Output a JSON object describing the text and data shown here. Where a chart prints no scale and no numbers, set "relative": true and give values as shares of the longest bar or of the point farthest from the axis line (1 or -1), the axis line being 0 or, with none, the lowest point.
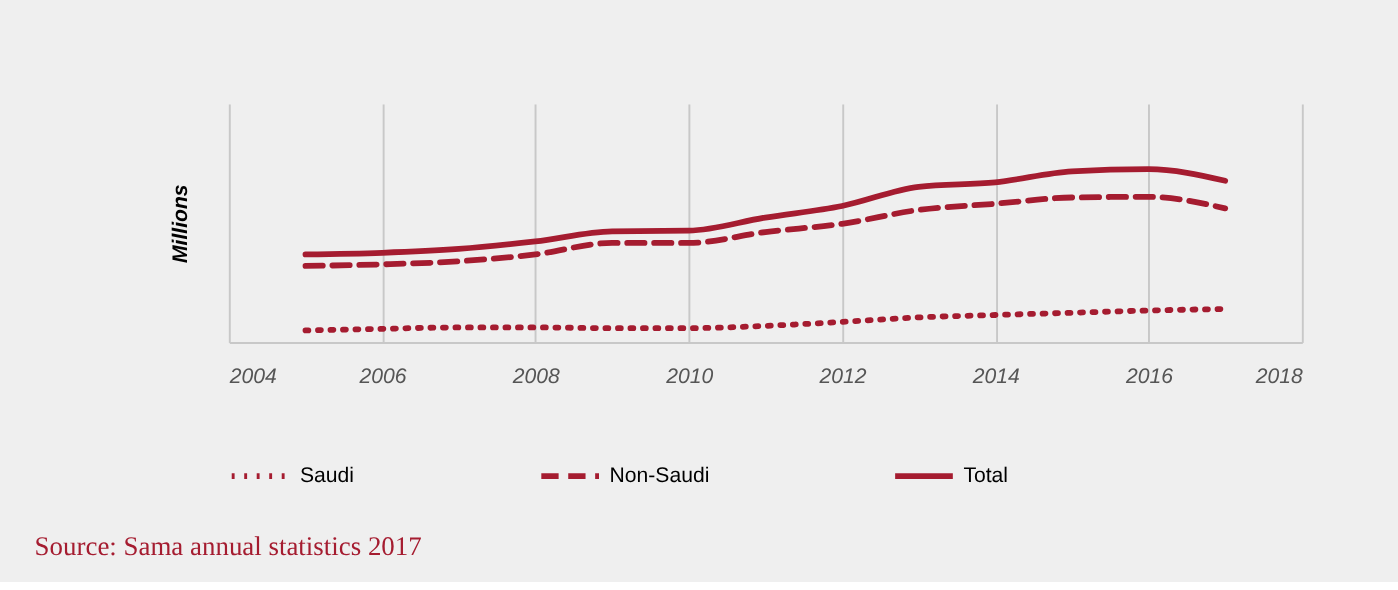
{
  "chart_data": {
    "type": "line",
    "relative": true,
    "ylabel": "Millions",
    "x": [
      2005,
      2006,
      2007,
      2008,
      2009,
      2010,
      2011,
      2012,
      2013,
      2014,
      2015,
      2016,
      2017
    ],
    "xlim": [
      2004,
      2018
    ],
    "xticks": [
      2004,
      2006,
      2008,
      2010,
      2012,
      2014,
      2016,
      2018
    ],
    "grid": "x",
    "legend": "bottom",
    "series": [
      {
        "name": "Saudi",
        "color": "#a51c30",
        "line_style": "dotted",
        "values": [
          0.067,
          0.076,
          0.084,
          0.084,
          0.08,
          0.08,
          0.093,
          0.116,
          0.142,
          0.156,
          0.169,
          0.182,
          0.191
        ]
      },
      {
        "name": "Non-Saudi",
        "color": "#a51c30",
        "line_style": "dashed",
        "values": [
          0.44,
          0.449,
          0.467,
          0.507,
          0.573,
          0.573,
          0.636,
          0.684,
          0.764,
          0.8,
          0.836,
          0.84,
          0.773
        ]
      },
      {
        "name": "Total",
        "color": "#a51c30",
        "line_style": "solid",
        "values": [
          0.507,
          0.516,
          0.538,
          0.582,
          0.64,
          0.644,
          0.72,
          0.787,
          0.898,
          0.924,
          0.987,
          1.0,
          0.933
        ]
      }
    ],
    "annotations": [
      "Source: Sama annual statistics 2017"
    ]
  }
}
